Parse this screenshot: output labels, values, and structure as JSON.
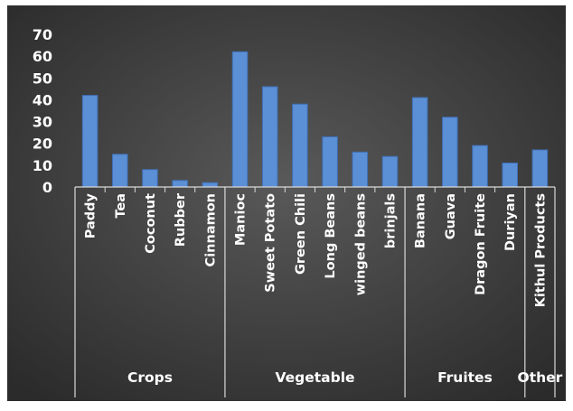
{
  "colors": {
    "bar": "#5b8fd6",
    "bar_edge": "#3f6fb3",
    "background_center": "#595959",
    "background_edge": "#2b2b2b",
    "axis": "#d9d9d9",
    "text": "#ffffff"
  },
  "chart_data": {
    "type": "bar",
    "title": "",
    "xlabel": "",
    "ylabel": "",
    "ylim": [
      0,
      70
    ],
    "yticks": [
      0,
      10,
      20,
      30,
      40,
      50,
      60,
      70
    ],
    "grid": false,
    "legend": "none",
    "categories": [
      "Paddy",
      "Tea",
      "Coconut",
      "Rubber",
      "Cinnamon",
      "Manioc",
      "Sweet Potato",
      "Green Chili",
      "Long Beans",
      "winged beans",
      "brinjals",
      "Banana",
      "Guava",
      "Dragon Fruite",
      "Duriyan",
      "Kithul Products"
    ],
    "values": [
      42,
      15,
      8,
      3,
      2,
      62,
      46,
      38,
      23,
      16,
      14,
      41,
      32,
      19,
      11,
      17
    ],
    "groups": [
      {
        "label": "Crops",
        "count": 5
      },
      {
        "label": "Vegetable",
        "count": 6
      },
      {
        "label": "Fruites",
        "count": 4
      },
      {
        "label": "Other",
        "count": 1
      }
    ]
  }
}
